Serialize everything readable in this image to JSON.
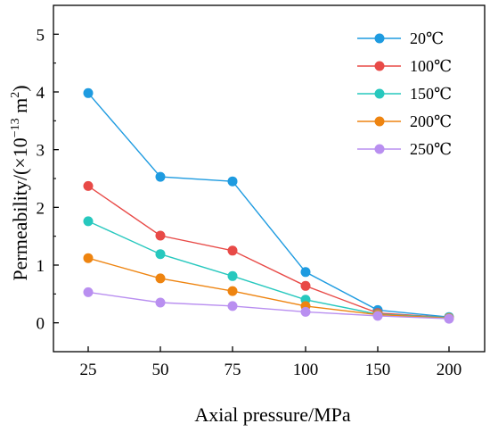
{
  "chart_data": {
    "type": "line",
    "categories": [
      "25",
      "50",
      "75",
      "100",
      "150",
      "200"
    ],
    "series": [
      {
        "name": "20℃",
        "color": "#1e9be0",
        "values": [
          3.98,
          2.53,
          2.45,
          0.88,
          0.22,
          0.1
        ]
      },
      {
        "name": "100℃",
        "color": "#e84a47",
        "values": [
          2.37,
          1.51,
          1.25,
          0.64,
          0.17,
          0.09
        ]
      },
      {
        "name": "150℃",
        "color": "#27c8be",
        "values": [
          1.76,
          1.19,
          0.81,
          0.4,
          0.15,
          0.09
        ]
      },
      {
        "name": "200℃",
        "color": "#ee8410",
        "values": [
          1.12,
          0.77,
          0.55,
          0.29,
          0.14,
          0.08
        ]
      },
      {
        "name": "250℃",
        "color": "#b98ff0",
        "values": [
          0.53,
          0.35,
          0.29,
          0.19,
          0.12,
          0.07
        ]
      }
    ],
    "xlabel": "Axial pressure/MPa",
    "ylabel_main": "Permeability/(×10",
    "ylabel_exp": "−13",
    "ylabel_unit": " m",
    "ylabel_unit_exp": "2",
    "ylabel_close": ")",
    "ylim": [
      -0.5,
      5.5
    ],
    "yticks": [
      0,
      1,
      2,
      3,
      4,
      5
    ],
    "legend_position": "top-right",
    "grid": false
  }
}
